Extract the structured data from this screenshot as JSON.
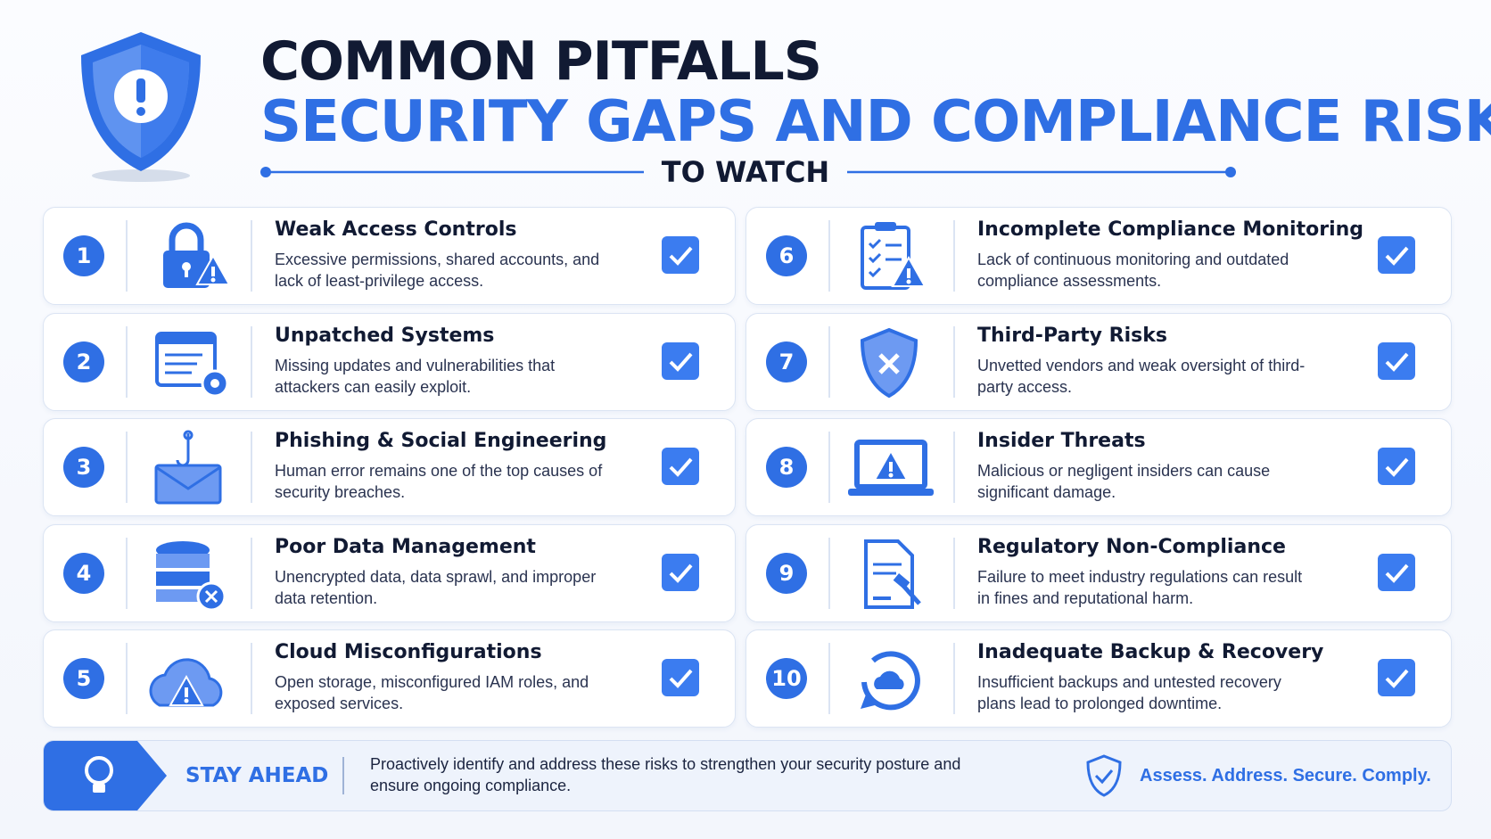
{
  "header": {
    "title": "COMMON PITFALLS",
    "subtitle": "SECURITY GAPS AND COMPLIANCE RISKS",
    "tagline": "TO WATCH"
  },
  "items": [
    {
      "number": "1",
      "title": "Weak Access Controls",
      "description": "Excessive permissions, shared accounts, and lack of least-privilege access."
    },
    {
      "number": "2",
      "title": "Unpatched Systems",
      "description": "Missing updates and vulnerabilities that attackers can easily exploit."
    },
    {
      "number": "3",
      "title": "Phishing & Social Engineering",
      "description": "Human error remains one of the top causes of security breaches."
    },
    {
      "number": "4",
      "title": "Poor Data Management",
      "description": "Unencrypted data, data sprawl, and improper data retention."
    },
    {
      "number": "5",
      "title": "Cloud Misconfigurations",
      "description": "Open storage, misconfigured IAM roles, and exposed services."
    },
    {
      "number": "6",
      "title": "Incomplete Compliance Monitoring",
      "description": "Lack of continuous monitoring and outdated compliance assessments."
    },
    {
      "number": "7",
      "title": "Third-Party Risks",
      "description": "Unvetted vendors and weak oversight of third-party access."
    },
    {
      "number": "8",
      "title": "Insider Threats",
      "description": "Malicious or negligent insiders can cause significant damage."
    },
    {
      "number": "9",
      "title": "Regulatory Non-Compliance",
      "description": "Failure to meet industry regulations can result in fines and reputational harm."
    },
    {
      "number": "10",
      "title": "Inadequate Backup & Recovery",
      "description": "Insufficient backups and untested recovery plans lead to prolonged downtime."
    }
  ],
  "footer": {
    "label": "STAY AHEAD",
    "text": "Proactively identify and address these risks to strengthen your security posture and ensure ongoing compliance.",
    "motto": "Assess. Address. Secure. Comply."
  }
}
